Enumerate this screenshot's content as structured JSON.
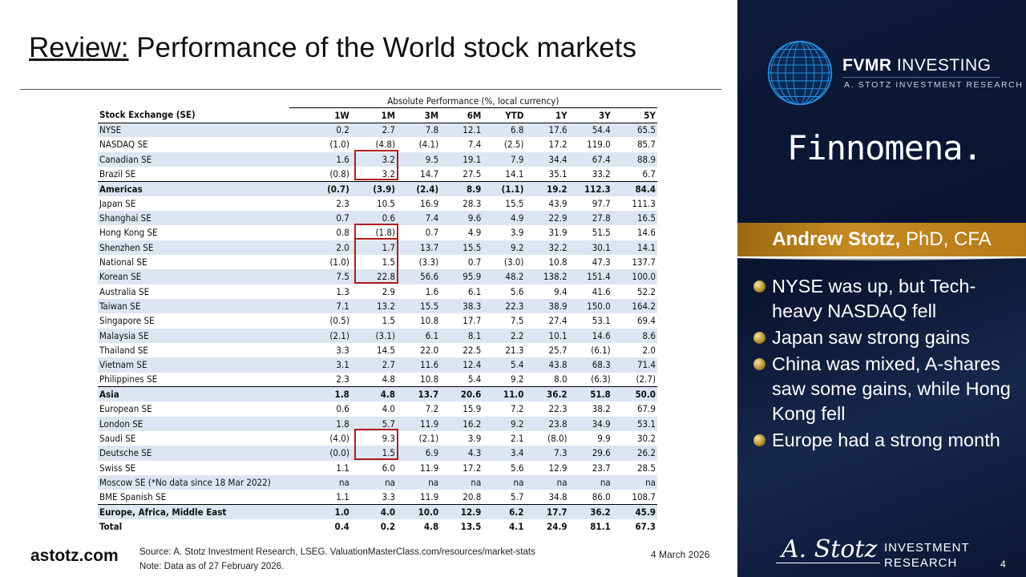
{
  "title": {
    "prefix": "Review:",
    "text": " Performance of the World stock markets"
  },
  "table": {
    "group_header": "Absolute Performance (%, local currency)",
    "columns": [
      "Stock Exchange (SE)",
      "1W",
      "1M",
      "3M",
      "6M",
      "YTD",
      "1Y",
      "3Y",
      "5Y"
    ],
    "rows": [
      {
        "name": "NYSE",
        "values": [
          "0.2",
          "2.7",
          "7.8",
          "12.1",
          "6.8",
          "17.6",
          "54.4",
          "65.5"
        ]
      },
      {
        "name": "NASDAQ SE",
        "values": [
          "(1.0)",
          "(4.8)",
          "(4.1)",
          "7.4",
          "(2.5)",
          "17.2",
          "119.0",
          "85.7"
        ]
      },
      {
        "name": "Canadian SE",
        "values": [
          "1.6",
          "3.2",
          "9.5",
          "19.1",
          "7.9",
          "34.4",
          "67.4",
          "88.9"
        ]
      },
      {
        "name": "Brazil SE",
        "values": [
          "(0.8)",
          "3.2",
          "14.7",
          "27.5",
          "14.1",
          "35.1",
          "33.2",
          "6.7"
        ]
      },
      {
        "name": "Americas",
        "bold": true,
        "topline": true,
        "values": [
          "(0.7)",
          "(3.9)",
          "(2.4)",
          "8.9",
          "(1.1)",
          "19.2",
          "112.3",
          "84.4"
        ]
      },
      {
        "name": "Japan SE",
        "values": [
          "2.3",
          "10.5",
          "16.9",
          "28.3",
          "15.5",
          "43.9",
          "97.7",
          "111.3"
        ]
      },
      {
        "name": "Shanghai SE",
        "values": [
          "0.7",
          "0.6",
          "7.4",
          "9.6",
          "4.9",
          "22.9",
          "27.8",
          "16.5"
        ]
      },
      {
        "name": "Hong Kong SE",
        "values": [
          "0.8",
          "(1.8)",
          "0.7",
          "4.9",
          "3.9",
          "31.9",
          "51.5",
          "14.6"
        ]
      },
      {
        "name": "Shenzhen SE",
        "values": [
          "2.0",
          "1.7",
          "13.7",
          "15.5",
          "9.2",
          "32.2",
          "30.1",
          "14.1"
        ]
      },
      {
        "name": "National SE",
        "values": [
          "(1.0)",
          "1.5",
          "(3.3)",
          "0.7",
          "(3.0)",
          "10.8",
          "47.3",
          "137.7"
        ]
      },
      {
        "name": "Korean SE",
        "values": [
          "7.5",
          "22.8",
          "56.6",
          "95.9",
          "48.2",
          "138.2",
          "151.4",
          "100.0"
        ]
      },
      {
        "name": "Australia SE",
        "values": [
          "1.3",
          "2.9",
          "1.6",
          "6.1",
          "5.6",
          "9.4",
          "41.6",
          "52.2"
        ]
      },
      {
        "name": "Taiwan SE",
        "values": [
          "7.1",
          "13.2",
          "15.5",
          "38.3",
          "22.3",
          "38.9",
          "150.0",
          "164.2"
        ]
      },
      {
        "name": "Singapore SE",
        "values": [
          "(0.5)",
          "1.5",
          "10.8",
          "17.7",
          "7.5",
          "27.4",
          "53.1",
          "69.4"
        ]
      },
      {
        "name": "Malaysia SE",
        "values": [
          "(2.1)",
          "(3.1)",
          "6.1",
          "8.1",
          "2.2",
          "10.1",
          "14.6",
          "8.6"
        ]
      },
      {
        "name": "Thailand SE",
        "values": [
          "3.3",
          "14.5",
          "22.0",
          "22.5",
          "21.3",
          "25.7",
          "(6.1)",
          "2.0"
        ]
      },
      {
        "name": "Vietnam SE",
        "values": [
          "3.1",
          "2.7",
          "11.6",
          "12.4",
          "5.4",
          "43.8",
          "68.3",
          "71.4"
        ]
      },
      {
        "name": "Philippines SE",
        "values": [
          "2.3",
          "4.8",
          "10.8",
          "5.4",
          "9.2",
          "8.0",
          "(6.3)",
          "(2.7)"
        ]
      },
      {
        "name": "Asia",
        "bold": true,
        "topline": true,
        "values": [
          "1.8",
          "4.8",
          "13.7",
          "20.6",
          "11.0",
          "36.2",
          "51.8",
          "50.0"
        ]
      },
      {
        "name": "European SE",
        "values": [
          "0.6",
          "4.0",
          "7.2",
          "15.9",
          "7.2",
          "22.3",
          "38.2",
          "67.9"
        ]
      },
      {
        "name": "London SE",
        "values": [
          "1.8",
          "5.7",
          "11.9",
          "16.2",
          "9.2",
          "23.8",
          "34.9",
          "53.1"
        ]
      },
      {
        "name": "Saudi SE",
        "values": [
          "(4.0)",
          "9.3",
          "(2.1)",
          "3.9",
          "2.1",
          "(8.0)",
          "9.9",
          "30.2"
        ]
      },
      {
        "name": "Deutsche SE",
        "values": [
          "(0.0)",
          "1.5",
          "6.9",
          "4.3",
          "3.4",
          "7.3",
          "29.6",
          "26.2"
        ]
      },
      {
        "name": "Swiss SE",
        "values": [
          "1.1",
          "6.0",
          "11.9",
          "17.2",
          "5.6",
          "12.9",
          "23.7",
          "28.5"
        ]
      },
      {
        "name": "Moscow SE (*No data since 18 Mar 2022)",
        "values": [
          "na",
          "na",
          "na",
          "na",
          "na",
          "na",
          "na",
          "na"
        ]
      },
      {
        "name": "BME Spanish SE",
        "values": [
          "1.1",
          "3.3",
          "11.9",
          "20.8",
          "5.7",
          "34.8",
          "86.0",
          "108.7"
        ]
      },
      {
        "name": "Europe, Africa, Middle East",
        "bold": true,
        "topline": true,
        "values": [
          "1.0",
          "4.0",
          "10.0",
          "12.9",
          "6.2",
          "17.7",
          "36.2",
          "45.9"
        ]
      },
      {
        "name": "Total",
        "bold": true,
        "values": [
          "0.4",
          "0.2",
          "4.8",
          "13.5",
          "4.1",
          "24.9",
          "81.1",
          "67.3"
        ]
      }
    ],
    "highlight_column": "1M",
    "highlight_row_ranges": [
      [
        0,
        1
      ],
      [
        5,
        5
      ],
      [
        6,
        8
      ],
      [
        19,
        20
      ]
    ]
  },
  "brand": {
    "fvmr_bold": "FVMR",
    "fvmr_rest": " INVESTING",
    "fvmr_sub": "A. STOTZ INVESTMENT RESEARCH",
    "finnomena": "Finnomena.",
    "presenter_name": "Andrew Stotz,",
    "presenter_creds": " PhD, CFA"
  },
  "bullets": [
    "NYSE was up, but Tech-heavy NASDAQ fell",
    "Japan saw strong gains",
    "China was mixed, A-shares saw some gains, while Hong Kong fell",
    "Europe had a strong month"
  ],
  "footer": {
    "site": "astotz.com",
    "source": "Source: A. Stotz Investment Research, LSEG. ValuationMasterClass.com/resources/market-stats",
    "note": "Note: Data as of 27 February 2026.",
    "date": "4 March 2026",
    "logo_signature": "A. Stotz",
    "logo_line1": "INVESTMENT",
    "logo_line2": "RESEARCH",
    "page": "4"
  },
  "colors": {
    "row_shade": "#dce6f2",
    "highlight": "#b01c1c",
    "panel": "#0c1a3a",
    "gold": "#c58a22"
  }
}
